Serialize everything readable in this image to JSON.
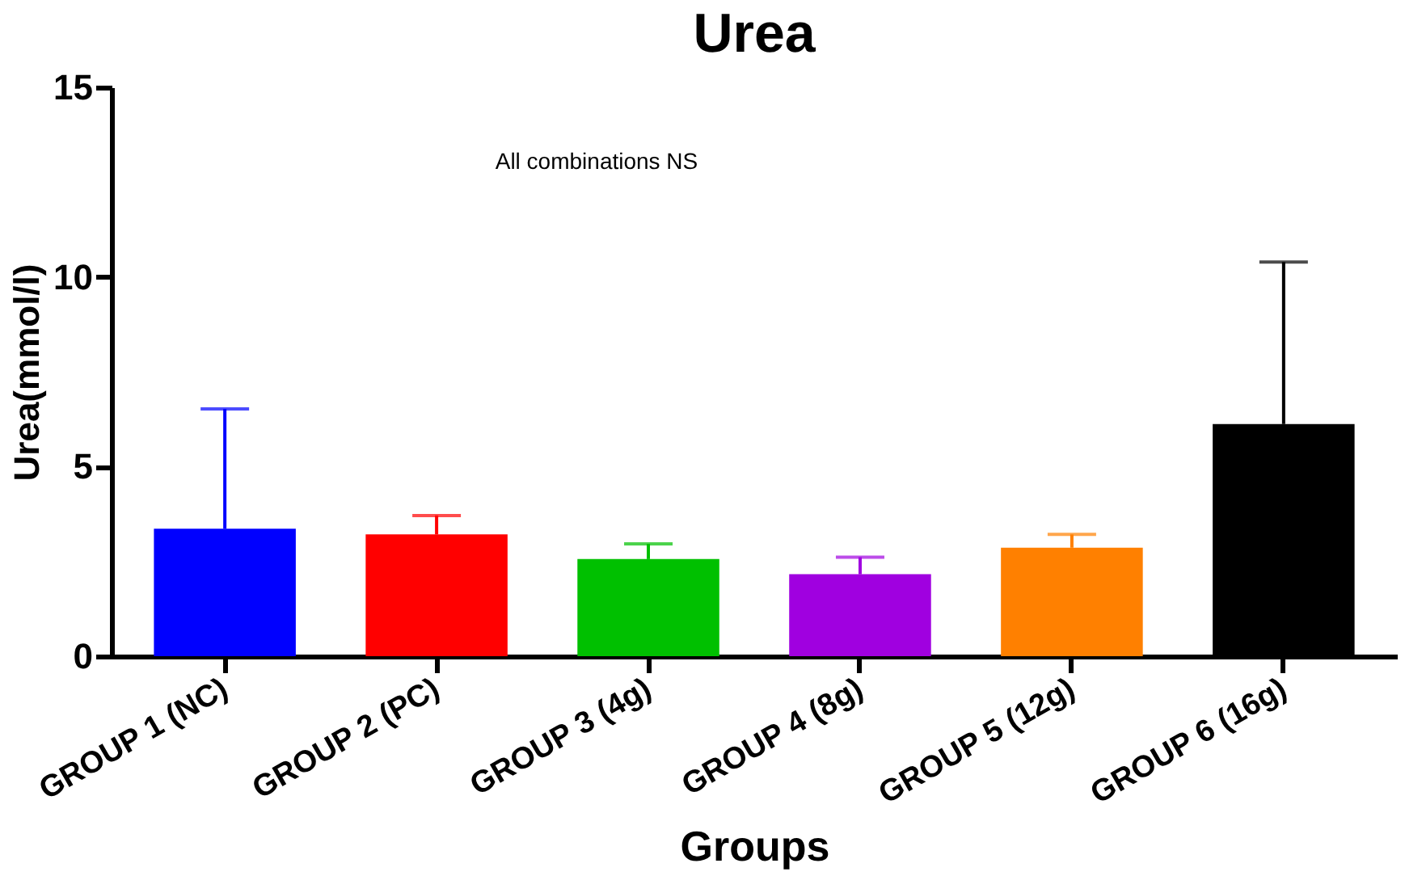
{
  "chart_data": {
    "type": "bar",
    "title": "Urea",
    "xlabel": "Groups",
    "ylabel": "Urea(mmol/l)",
    "categories": [
      "GROUP 1 (NC)",
      "GROUP 2 (PC)",
      "GROUP 3 (4g)",
      "GROUP 4 (8g)",
      "GROUP 5 (12g)",
      "GROUP 6 (16g)"
    ],
    "values": [
      3.36,
      3.21,
      2.56,
      2.16,
      2.86,
      6.12
    ],
    "colors": [
      "#0000ff",
      "#ff0000",
      "#00c000",
      "#a000e0",
      "#ff8000",
      "#000000"
    ],
    "errors": [
      [
        3.36,
        6.52
      ],
      [
        3.21,
        3.71
      ],
      [
        2.56,
        2.96
      ],
      [
        2.16,
        2.61
      ],
      [
        2.86,
        3.21
      ],
      [
        6.12,
        10.39
      ]
    ],
    "ylim": [
      0,
      15
    ],
    "yticks": [
      0,
      5,
      10,
      15
    ],
    "grid": false,
    "legend": false,
    "annotations": [
      "All combinations NS"
    ]
  }
}
